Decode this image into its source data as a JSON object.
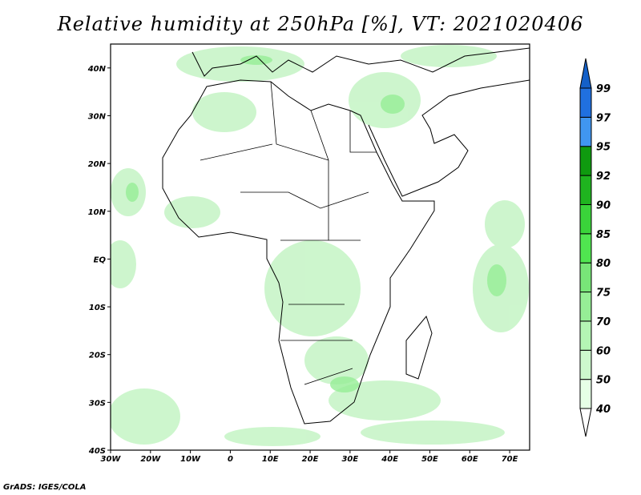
{
  "title": "Relative humidity at 250hPa [%], VT: 2021020406",
  "credit": "GrADS: IGES/COLA",
  "map": {
    "lon_range": [
      -30,
      75
    ],
    "lat_range": [
      -40,
      45
    ],
    "lon_ticks": [
      {
        "v": -30,
        "label": "30W"
      },
      {
        "v": -20,
        "label": "20W"
      },
      {
        "v": -10,
        "label": "10W"
      },
      {
        "v": 0,
        "label": "0"
      },
      {
        "v": 10,
        "label": "10E"
      },
      {
        "v": 20,
        "label": "20E"
      },
      {
        "v": 30,
        "label": "30E"
      },
      {
        "v": 40,
        "label": "40E"
      },
      {
        "v": 50,
        "label": "50E"
      },
      {
        "v": 60,
        "label": "60E"
      },
      {
        "v": 70,
        "label": "70E"
      }
    ],
    "lat_ticks": [
      {
        "v": 40,
        "label": "40N"
      },
      {
        "v": 30,
        "label": "30N"
      },
      {
        "v": 20,
        "label": "20N"
      },
      {
        "v": 10,
        "label": "10N"
      },
      {
        "v": 0,
        "label": "EQ"
      },
      {
        "v": -10,
        "label": "10S"
      },
      {
        "v": -20,
        "label": "20S"
      },
      {
        "v": -30,
        "label": "30S"
      },
      {
        "v": -40,
        "label": "40S"
      }
    ]
  },
  "colorbar": {
    "labels": [
      "40",
      "50",
      "60",
      "70",
      "75",
      "80",
      "85",
      "90",
      "92",
      "95",
      "97",
      "99"
    ],
    "colors": [
      "#e6ffe6",
      "#cdf9cd",
      "#b4f5b4",
      "#96ee96",
      "#78e678",
      "#50e650",
      "#3ad43a",
      "#1fb41f",
      "#0f9a0f",
      "#4096f0",
      "#2070e0",
      "#1460c8"
    ],
    "low_color": "#ffffff"
  }
}
